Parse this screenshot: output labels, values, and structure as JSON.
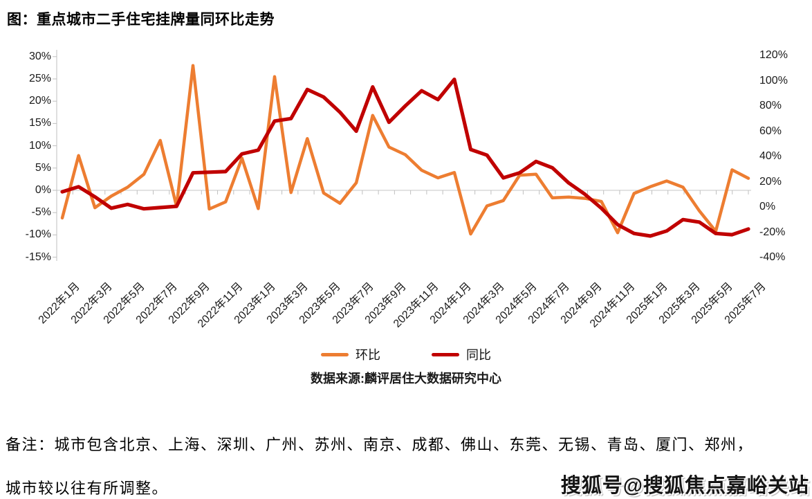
{
  "title": "图：重点城市二手住宅挂牌量同环比走势",
  "source": "数据来源:麟评居住大数据研究中心",
  "note_line1": "备注：城市包含北京、上海、深圳、广州、苏州、南京、成都、佛山、东莞、无锡、青岛、厦门、郑州，",
  "note_line2": "城市较以往有所调整。",
  "watermark": "搜狐号@搜狐焦点嘉峪关站",
  "colors": {
    "huanbi": "#ED7D31",
    "tongbi": "#C00000",
    "gridline": "#D9D9D9",
    "axis": "#BFBFBF"
  },
  "legend": {
    "huanbi_label": "环比",
    "tongbi_label": "同比"
  },
  "chart_data": {
    "type": "line",
    "title": "重点城市二手住宅挂牌量同环比走势",
    "grid": "zero-line-only",
    "legend_position": "bottom",
    "categories": [
      "2022年1月",
      "2022年2月",
      "2022年3月",
      "2022年4月",
      "2022年5月",
      "2022年6月",
      "2022年7月",
      "2022年8月",
      "2022年9月",
      "2022年10月",
      "2022年11月",
      "2022年12月",
      "2023年1月",
      "2023年2月",
      "2023年3月",
      "2023年4月",
      "2023年5月",
      "2023年6月",
      "2023年7月",
      "2023年8月",
      "2023年9月",
      "2023年10月",
      "2023年11月",
      "2023年12月",
      "2024年1月",
      "2024年2月",
      "2024年3月",
      "2024年4月",
      "2024年5月",
      "2024年6月",
      "2024年7月",
      "2024年8月",
      "2024年9月",
      "2024年10月",
      "2024年11月",
      "2024年12月",
      "2025年1月",
      "2025年2月",
      "2025年3月",
      "2025年4月",
      "2025年5月",
      "2025年6月",
      "2025年7月"
    ],
    "x_tick_labels": [
      "2022年1月",
      "2022年3月",
      "2022年5月",
      "2022年7月",
      "2022年9月",
      "2022年11月",
      "2023年1月",
      "2023年3月",
      "2023年5月",
      "2023年7月",
      "2023年9月",
      "2023年11月",
      "2024年1月",
      "2024年3月",
      "2024年5月",
      "2024年7月",
      "2024年9月",
      "2024年11月",
      "2025年1月",
      "2025年3月",
      "2025年5月",
      "2025年7月"
    ],
    "series": [
      {
        "name": "环比",
        "axis": "left",
        "color": "#ED7D31",
        "values": [
          -6.2,
          7.8,
          -3.9,
          -1.3,
          0.7,
          3.6,
          11.2,
          -3.6,
          28.0,
          -4.2,
          -2.6,
          7.2,
          -4.1,
          25.5,
          -0.5,
          11.6,
          -0.6,
          -2.9,
          1.7,
          16.8,
          9.7,
          8.0,
          4.5,
          2.8,
          4.0,
          -9.8,
          -3.5,
          -2.3,
          3.4,
          3.6,
          -1.7,
          -1.5,
          -1.8,
          -2.5,
          -9.5,
          -0.7,
          0.8,
          2.1,
          0.7,
          -4.6,
          -9.2,
          4.6,
          2.7
        ]
      },
      {
        "name": "同比",
        "axis": "right",
        "color": "#C00000",
        "values": [
          12,
          16,
          8,
          -1,
          2,
          -1.5,
          -0.5,
          0.5,
          27,
          27.5,
          28,
          42,
          45,
          68,
          70,
          93,
          87,
          75,
          60,
          95,
          67,
          80,
          92,
          85,
          101,
          45.5,
          41,
          23,
          27,
          36,
          31,
          19,
          10,
          -1,
          -14,
          -21,
          -23,
          -19,
          -10,
          -12,
          -21,
          -22,
          -17.5
        ]
      }
    ],
    "left_axis": {
      "unit": "%",
      "tick_labels": [
        "30%",
        "25%",
        "20%",
        "15%",
        "10%",
        "5%",
        "0%",
        "-5%",
        "-10%",
        "-15%"
      ],
      "range": [
        -15,
        30
      ]
    },
    "right_axis": {
      "unit": "%",
      "tick_labels": [
        "120%",
        "100%",
        "80%",
        "60%",
        "40%",
        "20%",
        "0%",
        "-20%",
        "-40%"
      ],
      "range": [
        -40,
        120
      ]
    }
  }
}
